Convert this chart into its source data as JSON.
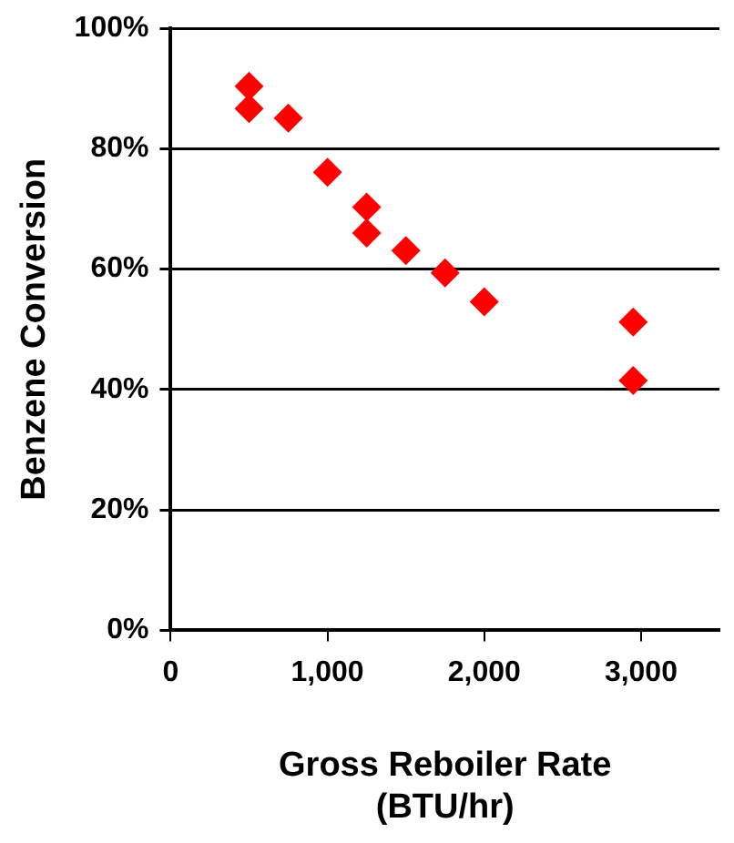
{
  "chart_data": {
    "type": "scatter",
    "xlabel": "Gross Reboiler Rate\n(BTU/hr)",
    "ylabel": "Benzene Conversion",
    "series": [
      {
        "color": "#ff0000",
        "x": [
          500,
          500,
          750,
          1000,
          1250,
          1250,
          1500,
          1750,
          2000,
          2950,
          2950
        ],
        "values": [
          90.4,
          86.7,
          85.1,
          76.1,
          70.3,
          66.0,
          63.1,
          59.4,
          54.6,
          51.2,
          41.5
        ]
      }
    ],
    "xlim": [
      0,
      3500
    ],
    "xticks": [
      0,
      {
        "value": 1000,
        "label": "1,000"
      },
      {
        "value": 2000,
        "label": "2,000"
      },
      {
        "value": 3000,
        "label": "3,000"
      }
    ],
    "ylim": [
      0,
      100
    ],
    "yticks": [
      {
        "value": 0,
        "label": "0%"
      },
      {
        "value": 20,
        "label": "20%"
      },
      {
        "value": 40,
        "label": "40%"
      },
      {
        "value": 60,
        "label": "60%"
      },
      {
        "value": 80,
        "label": "80%"
      },
      {
        "value": 100,
        "label": "100%"
      }
    ],
    "grid": "y",
    "legend": false,
    "marker": "diamond"
  }
}
